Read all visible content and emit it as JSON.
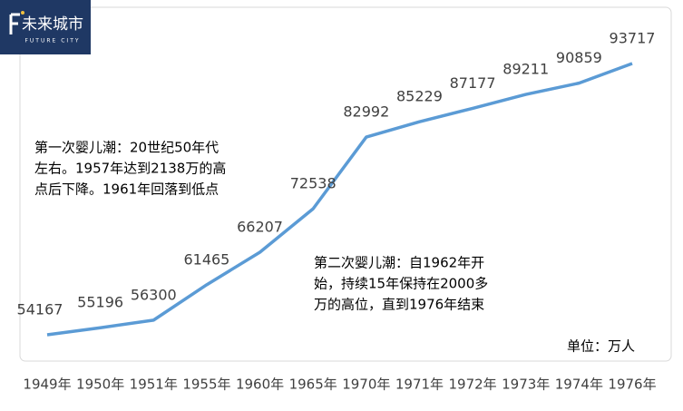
{
  "logo": {
    "name": "未来城市",
    "tagline": "FUTURE CITY"
  },
  "chart_data": {
    "type": "line",
    "categories": [
      "1949年",
      "1950年",
      "1951年",
      "1955年",
      "1960年",
      "1965年",
      "1970年",
      "1971年",
      "1972年",
      "1973年",
      "1974年",
      "1976年"
    ],
    "values": [
      54167,
      55196,
      56300,
      61465,
      66207,
      72538,
      82992,
      85229,
      87177,
      89211,
      90859,
      93717
    ],
    "color": "#5b9bd5",
    "ylim": [
      50000,
      100000
    ],
    "annotations": [
      {
        "lines": [
          "第一次婴儿潮：20世纪50年代",
          "左右。1957年达到2138万的高",
          "点后下降。1961年回落到低点"
        ]
      },
      {
        "lines": [
          "第二次婴儿潮：自1962年开",
          "始，持续15年保持在2000多",
          "万的高位，直到1976年结束"
        ]
      }
    ],
    "unit_label": "单位：万人"
  }
}
